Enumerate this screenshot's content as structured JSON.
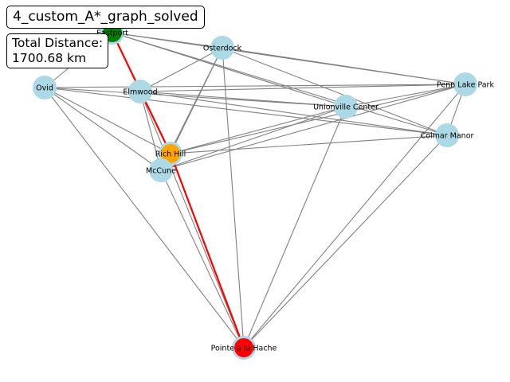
{
  "title": "4_custom_A*_graph_solved",
  "summary": {
    "label": "Total Distance:",
    "value": "1700.68 km"
  },
  "colors": {
    "node_default": "#add8e6",
    "start": "#008000",
    "goal": "#ff0000",
    "intermediate": "#ffa500",
    "edge": "#808080",
    "path_edge": "#ff0000"
  },
  "nodes": [
    {
      "id": "Eastport",
      "label": "Eastport",
      "role": "start"
    },
    {
      "id": "Osterdock",
      "label": "Osterdock",
      "role": "default"
    },
    {
      "id": "Ovid",
      "label": "Ovid",
      "role": "default"
    },
    {
      "id": "Elmwood",
      "label": "Elmwood",
      "role": "default"
    },
    {
      "id": "Penn Lake Park",
      "label": "Penn Lake Park",
      "role": "default"
    },
    {
      "id": "Unionville Center",
      "label": "Unionville Center",
      "role": "default"
    },
    {
      "id": "Colmar Manor",
      "label": "Colmar Manor",
      "role": "default"
    },
    {
      "id": "Rich Hill",
      "label": "Rich Hill",
      "role": "path"
    },
    {
      "id": "McCune",
      "label": "McCune",
      "role": "default"
    },
    {
      "id": "Pointe a la Hache",
      "label": "Pointe a la Hache",
      "role": "goal"
    }
  ],
  "edges": [
    [
      "Eastport",
      "Osterdock"
    ],
    [
      "Eastport",
      "Penn Lake Park"
    ],
    [
      "Eastport",
      "Unionville Center"
    ],
    [
      "Eastport",
      "Colmar Manor"
    ],
    [
      "Eastport",
      "Ovid"
    ],
    [
      "Eastport",
      "Elmwood"
    ],
    [
      "Osterdock",
      "Penn Lake Park"
    ],
    [
      "Osterdock",
      "Colmar Manor"
    ],
    [
      "Osterdock",
      "Elmwood"
    ],
    [
      "Osterdock",
      "Rich Hill"
    ],
    [
      "Osterdock",
      "McCune"
    ],
    [
      "Osterdock",
      "Pointe a la Hache"
    ],
    [
      "Ovid",
      "Unionville Center"
    ],
    [
      "Ovid",
      "Colmar Manor"
    ],
    [
      "Ovid",
      "Rich Hill"
    ],
    [
      "Ovid",
      "McCune"
    ],
    [
      "Ovid",
      "Pointe a la Hache"
    ],
    [
      "Ovid",
      "Penn Lake Park"
    ],
    [
      "Elmwood",
      "Unionville Center"
    ],
    [
      "Elmwood",
      "Colmar Manor"
    ],
    [
      "Elmwood",
      "Penn Lake Park"
    ],
    [
      "Elmwood",
      "McCune"
    ],
    [
      "Elmwood",
      "Pointe a la Hache"
    ],
    [
      "Elmwood",
      "Rich Hill"
    ],
    [
      "Penn Lake Park",
      "Rich Hill"
    ],
    [
      "Penn Lake Park",
      "McCune"
    ],
    [
      "Penn Lake Park",
      "Colmar Manor"
    ],
    [
      "Penn Lake Park",
      "Pointe a la Hache"
    ],
    [
      "Unionville Center",
      "Rich Hill"
    ],
    [
      "Unionville Center",
      "McCune"
    ],
    [
      "Unionville Center",
      "Pointe a la Hache"
    ],
    [
      "Colmar Manor",
      "Rich Hill"
    ],
    [
      "Colmar Manor",
      "Pointe a la Hache"
    ],
    [
      "McCune",
      "Pointe a la Hache"
    ],
    [
      "Unionville Center",
      "Penn Lake Park"
    ]
  ],
  "path": [
    "Eastport",
    "Rich Hill",
    "Pointe a la Hache"
  ]
}
